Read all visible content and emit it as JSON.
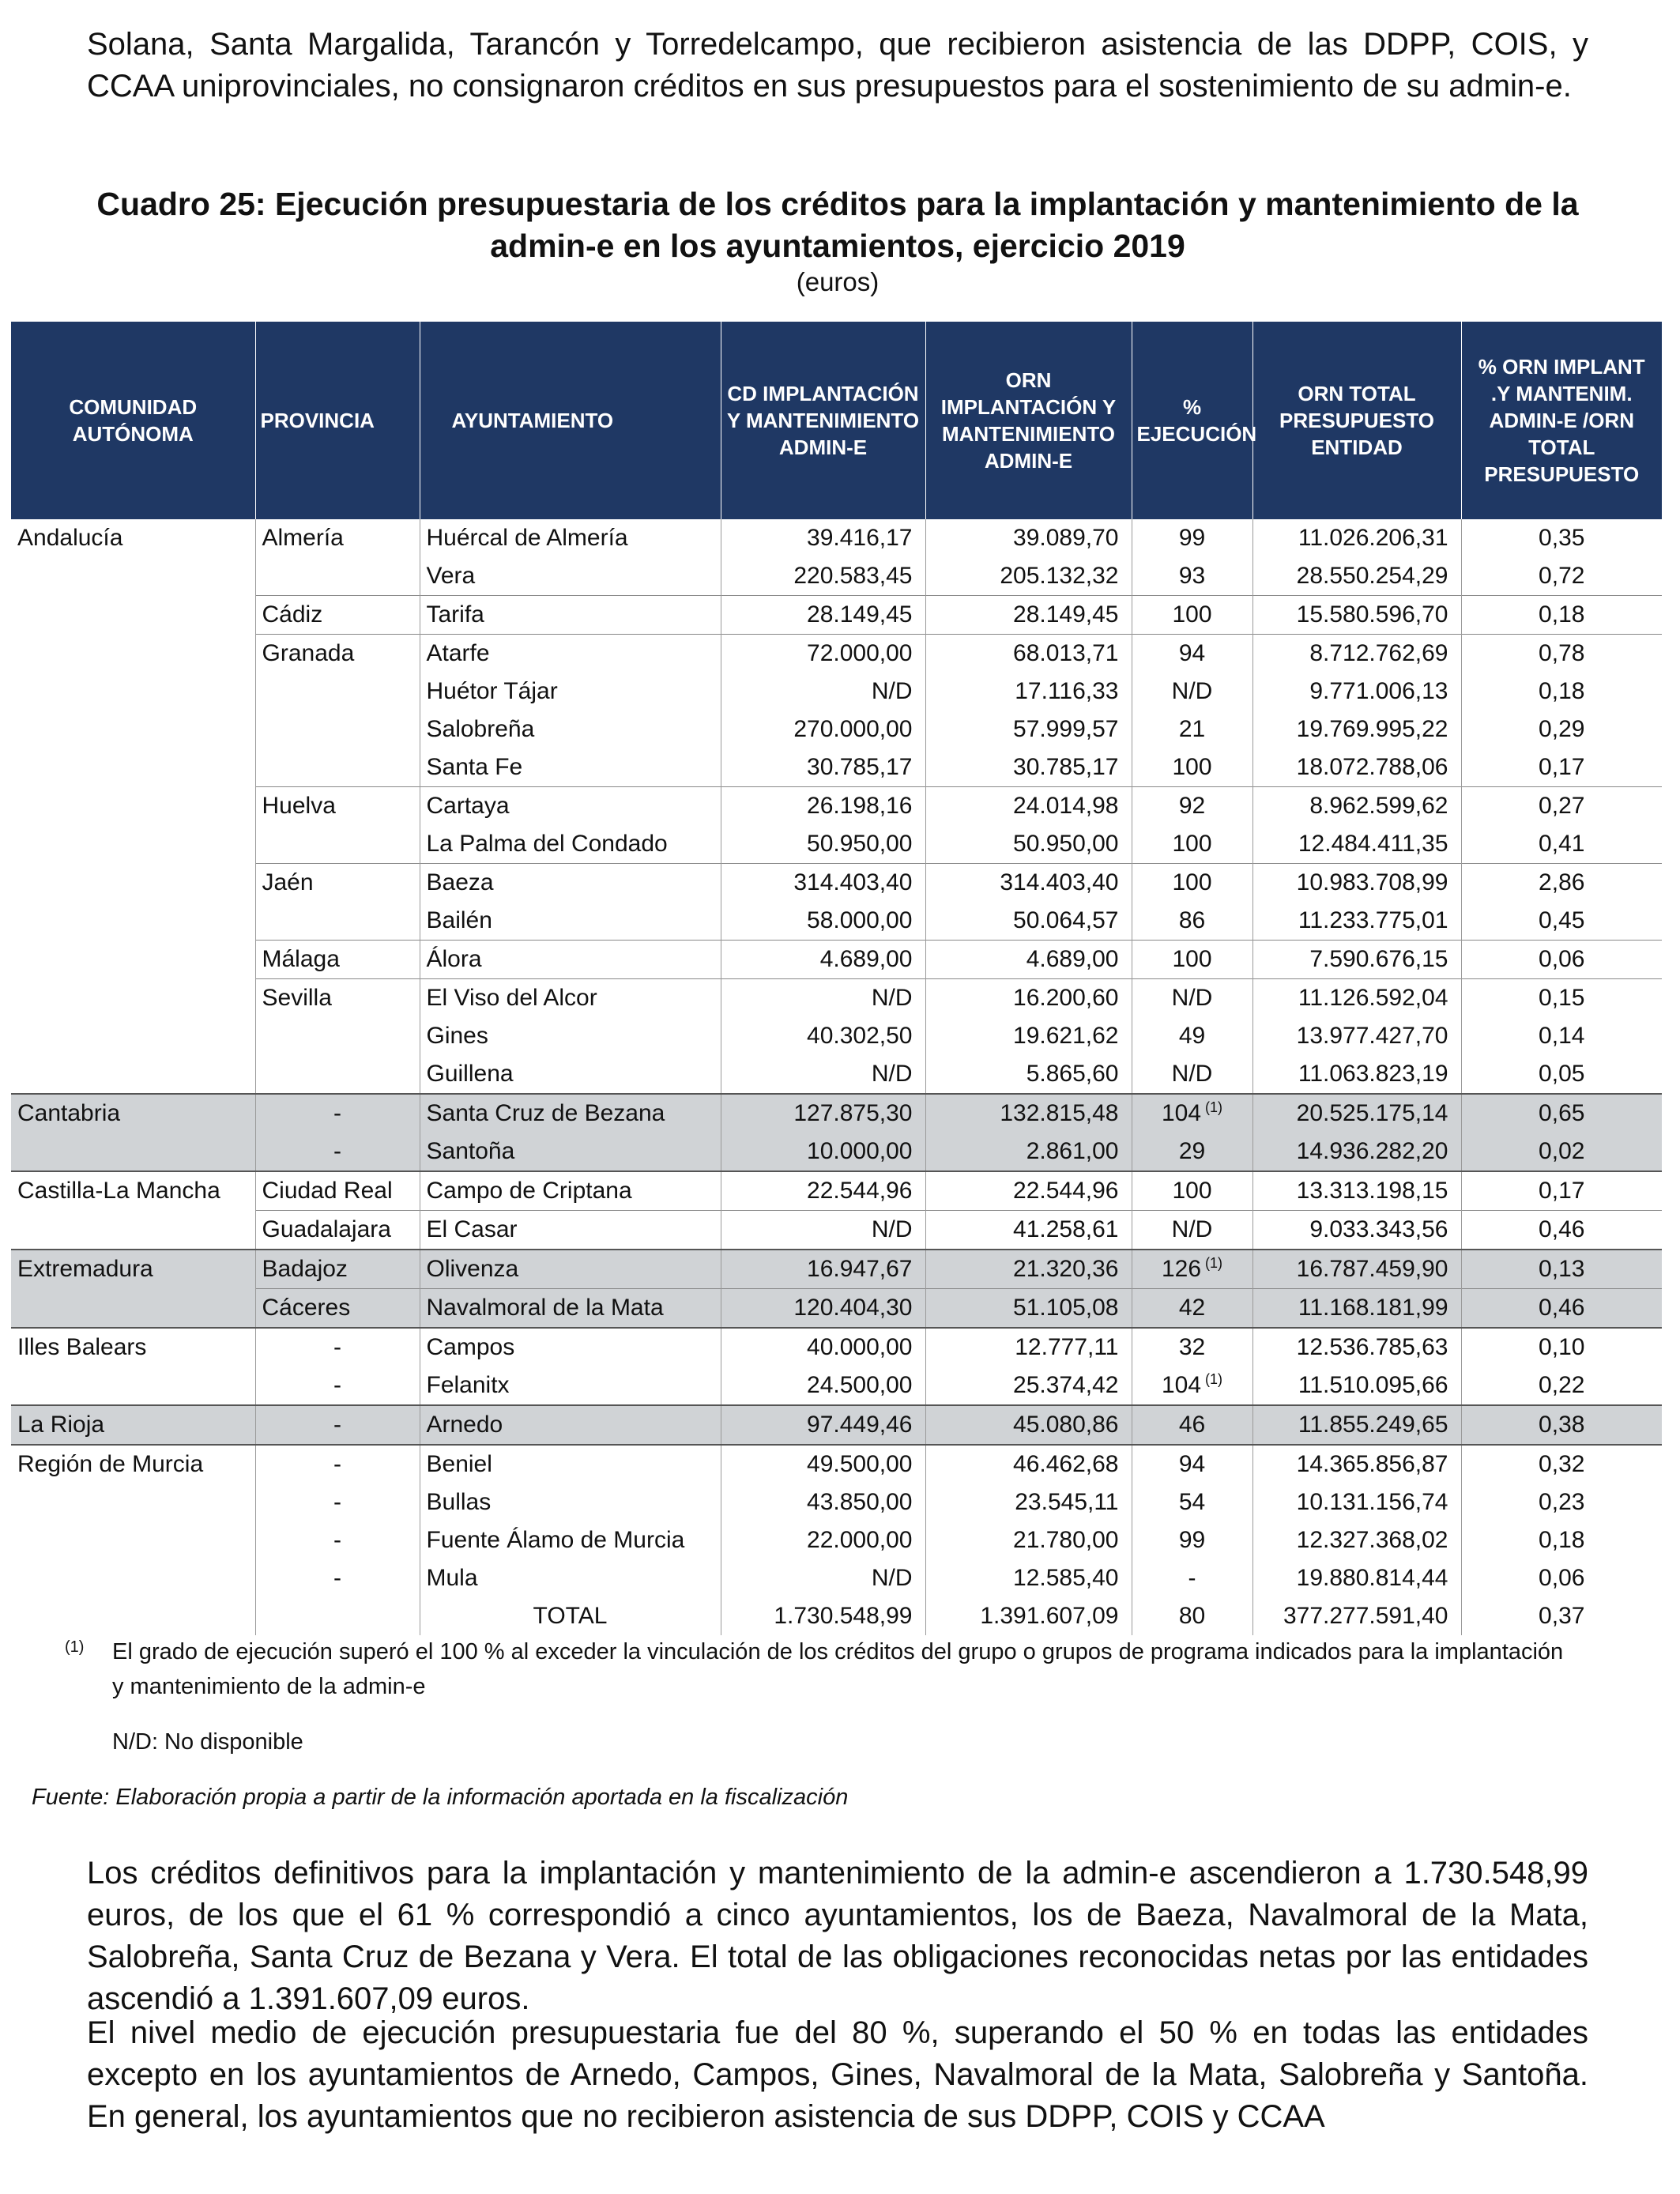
{
  "intro_paragraph": "Solana, Santa Margalida, Tarancón y Torredelcampo, que recibieron asistencia de las DDPP, COIS, y CCAA uniprovinciales, no consignaron créditos en sus presupuestos para el sostenimiento de su admin-e.",
  "table_title": "Cuadro 25: Ejecución presupuestaria de los créditos para la implantación y mantenimiento de la admin-e en los ayuntamientos, ejercicio 2019",
  "table_units": "(euros)",
  "headers": {
    "comunidad": "COMUNIDAD AUTÓNOMA",
    "provincia": "PROVINCIA",
    "ayuntamiento": "AYUNTAMIENTO",
    "cd": "CD IMPLANTACIÓN Y MANTENIMIENTO ADMIN-E",
    "orn": "ORN IMPLANTACIÓN Y MANTENIMIENTO ADMIN-E",
    "ejecucion": "% EJECUCIÓN",
    "orn_total": "ORN TOTAL PRESUPUESTO ENTIDAD",
    "pct_orn": "% ORN IMPLANT .Y MANTENIM. ADMIN-E /ORN TOTAL PRESUPUESTO"
  },
  "rows": [
    {
      "ca": "Andalucía",
      "prov": "Almería",
      "ayto": "Huércal de Almería",
      "cd": "39.416,17",
      "orn": "39.089,70",
      "ejec": "99",
      "orn_total": "11.026.206,31",
      "pct": "0,35"
    },
    {
      "ca": "",
      "prov": "",
      "ayto": "Vera",
      "cd": "220.583,45",
      "orn": "205.132,32",
      "ejec": "93",
      "orn_total": "28.550.254,29",
      "pct": "0,72"
    },
    {
      "ca": "",
      "prov": "Cádiz",
      "ayto": "Tarifa",
      "cd": "28.149,45",
      "orn": "28.149,45",
      "ejec": "100",
      "orn_total": "15.580.596,70",
      "pct": "0,18"
    },
    {
      "ca": "",
      "prov": "Granada",
      "ayto": "Atarfe",
      "cd": "72.000,00",
      "orn": "68.013,71",
      "ejec": "94",
      "orn_total": "8.712.762,69",
      "pct": "0,78"
    },
    {
      "ca": "",
      "prov": "",
      "ayto": "Huétor Tájar",
      "cd": "N/D",
      "orn": "17.116,33",
      "ejec": "N/D",
      "orn_total": "9.771.006,13",
      "pct": "0,18"
    },
    {
      "ca": "",
      "prov": "",
      "ayto": "Salobreña",
      "cd": "270.000,00",
      "orn": "57.999,57",
      "ejec": "21",
      "orn_total": "19.769.995,22",
      "pct": "0,29"
    },
    {
      "ca": "",
      "prov": "",
      "ayto": "Santa Fe",
      "cd": "30.785,17",
      "orn": "30.785,17",
      "ejec": "100",
      "orn_total": "18.072.788,06",
      "pct": "0,17"
    },
    {
      "ca": "",
      "prov": "Huelva",
      "ayto": "Cartaya",
      "cd": "26.198,16",
      "orn": "24.014,98",
      "ejec": "92",
      "orn_total": "8.962.599,62",
      "pct": "0,27"
    },
    {
      "ca": "",
      "prov": "",
      "ayto": "La Palma del Condado",
      "cd": "50.950,00",
      "orn": "50.950,00",
      "ejec": "100",
      "orn_total": "12.484.411,35",
      "pct": "0,41"
    },
    {
      "ca": "",
      "prov": "Jaén",
      "ayto": "Baeza",
      "cd": "314.403,40",
      "orn": "314.403,40",
      "ejec": "100",
      "orn_total": "10.983.708,99",
      "pct": "2,86"
    },
    {
      "ca": "",
      "prov": "",
      "ayto": "Bailén",
      "cd": "58.000,00",
      "orn": "50.064,57",
      "ejec": "86",
      "orn_total": "11.233.775,01",
      "pct": "0,45"
    },
    {
      "ca": "",
      "prov": "Málaga",
      "ayto": "Álora",
      "cd": "4.689,00",
      "orn": "4.689,00",
      "ejec": "100",
      "orn_total": "7.590.676,15",
      "pct": "0,06"
    },
    {
      "ca": "",
      "prov": "Sevilla",
      "ayto": "El Viso del Alcor",
      "cd": "N/D",
      "orn": "16.200,60",
      "ejec": "N/D",
      "orn_total": "11.126.592,04",
      "pct": "0,15"
    },
    {
      "ca": "",
      "prov": "",
      "ayto": "Gines",
      "cd": "40.302,50",
      "orn": "19.621,62",
      "ejec": "49",
      "orn_total": "13.977.427,70",
      "pct": "0,14"
    },
    {
      "ca": "",
      "prov": "",
      "ayto": "Guillena",
      "cd": "N/D",
      "orn": "5.865,60",
      "ejec": "N/D",
      "orn_total": "11.063.823,19",
      "pct": "0,05"
    },
    {
      "ca": "Cantabria",
      "prov": "-",
      "ayto": "Santa Cruz de Bezana",
      "cd": "127.875,30",
      "orn": "132.815,48",
      "ejec": "104",
      "note": "(1)",
      "orn_total": "20.525.175,14",
      "pct": "0,65"
    },
    {
      "ca": "",
      "prov": "-",
      "ayto": "Santoña",
      "cd": "10.000,00",
      "orn": "2.861,00",
      "ejec": "29",
      "orn_total": "14.936.282,20",
      "pct": "0,02"
    },
    {
      "ca": "Castilla-La Mancha",
      "prov": "Ciudad Real",
      "ayto": "Campo de Criptana",
      "cd": "22.544,96",
      "orn": "22.544,96",
      "ejec": "100",
      "orn_total": "13.313.198,15",
      "pct": "0,17"
    },
    {
      "ca": "",
      "prov": "Guadalajara",
      "ayto": "El Casar",
      "cd": "N/D",
      "orn": "41.258,61",
      "ejec": "N/D",
      "orn_total": "9.033.343,56",
      "pct": "0,46"
    },
    {
      "ca": "Extremadura",
      "prov": "Badajoz",
      "ayto": "Olivenza",
      "cd": "16.947,67",
      "orn": "21.320,36",
      "ejec": "126",
      "note": "(1)",
      "orn_total": "16.787.459,90",
      "pct": "0,13"
    },
    {
      "ca": "",
      "prov": "Cáceres",
      "ayto": "Navalmoral de la Mata",
      "cd": "120.404,30",
      "orn": "51.105,08",
      "ejec": "42",
      "orn_total": "11.168.181,99",
      "pct": "0,46"
    },
    {
      "ca": "Illes Balears",
      "prov": "-",
      "ayto": "Campos",
      "cd": "40.000,00",
      "orn": "12.777,11",
      "ejec": "32",
      "orn_total": "12.536.785,63",
      "pct": "0,10"
    },
    {
      "ca": "",
      "prov": "-",
      "ayto": "Felanitx",
      "cd": "24.500,00",
      "orn": "25.374,42",
      "ejec": "104",
      "note": "(1)",
      "orn_total": "11.510.095,66",
      "pct": "0,22"
    },
    {
      "ca": "La Rioja",
      "prov": "-",
      "ayto": "Arnedo",
      "cd": "97.449,46",
      "orn": "45.080,86",
      "ejec": "46",
      "orn_total": "11.855.249,65",
      "pct": "0,38"
    },
    {
      "ca": "Región de Murcia",
      "prov": "-",
      "ayto": "Beniel",
      "cd": "49.500,00",
      "orn": "46.462,68",
      "ejec": "94",
      "orn_total": "14.365.856,87",
      "pct": "0,32"
    },
    {
      "ca": "",
      "prov": "-",
      "ayto": "Bullas",
      "cd": "43.850,00",
      "orn": "23.545,11",
      "ejec": "54",
      "orn_total": "10.131.156,74",
      "pct": "0,23"
    },
    {
      "ca": "",
      "prov": "-",
      "ayto": "Fuente Álamo de Murcia",
      "cd": "22.000,00",
      "orn": "21.780,00",
      "ejec": "99",
      "orn_total": "12.327.368,02",
      "pct": "0,18"
    },
    {
      "ca": "",
      "prov": "-",
      "ayto": "Mula",
      "cd": "N/D",
      "orn": "12.585,40",
      "ejec": "-",
      "orn_total": "19.880.814,44",
      "pct": "0,06"
    }
  ],
  "total": {
    "label": "TOTAL",
    "cd": "1.730.548,99",
    "orn": "1.391.607,09",
    "ejec": "80",
    "orn_total": "377.277.591,40",
    "pct": "0,37"
  },
  "footnote_mark": "(1)",
  "footnote_text": "El grado de ejecución superó el 100 % al exceder la vinculación de los créditos del grupo o grupos de programa indicados para la implantación y mantenimiento de la admin-e",
  "nd_note": "N/D: No disponible",
  "source": "Fuente: Elaboración propia a partir de la información aportada en la fiscalización",
  "paragraph_1": "Los créditos definitivos para la implantación y mantenimiento de la admin-e ascendieron a 1.730.548,99 euros, de los que el 61 % correspondió a cinco ayuntamientos, los de Baeza, Navalmoral de la Mata, Salobreña, Santa Cruz de Bezana y Vera. El total de las obligaciones reconocidas netas por las entidades ascendió a 1.391.607,09 euros.",
  "paragraph_2": "El nivel medio de ejecución presupuestaria fue del 80 %, superando el 50 % en todas las entidades excepto en los ayuntamientos de Arnedo, Campos, Gines, Navalmoral de la Mata, Salobreña y Santoña. En general, los ayuntamientos que no recibieron asistencia de sus DDPP, COIS y CCAA",
  "colors": {
    "header_bg": "#1f3864",
    "shade_bg": "#d0d3d6"
  }
}
